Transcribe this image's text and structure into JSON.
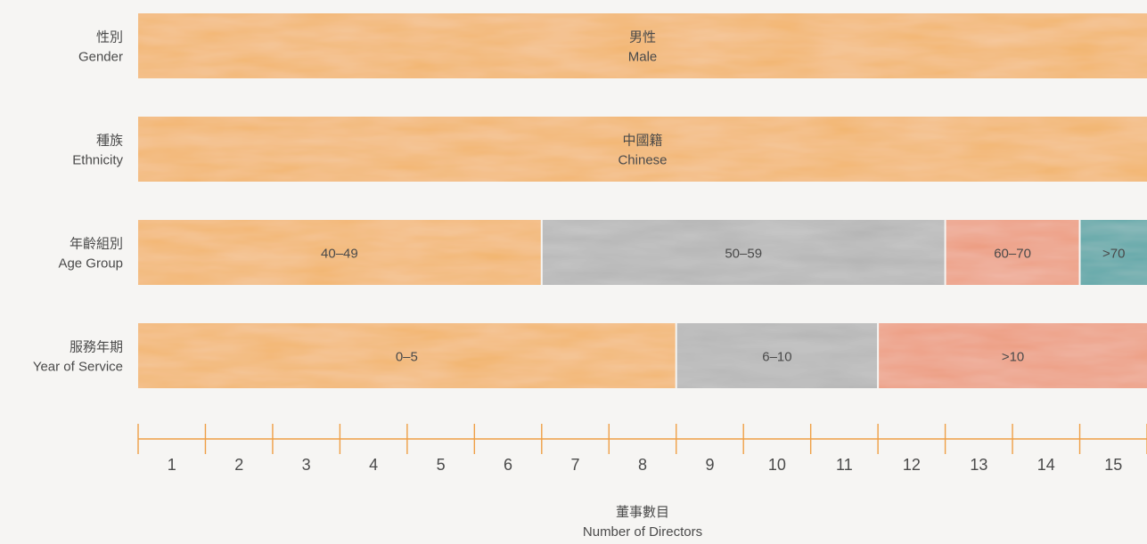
{
  "chart_data": {
    "type": "bar",
    "orientation": "horizontal-stacked",
    "rows": [
      {
        "label_zh": "性別",
        "label_en": "Gender",
        "segments": [
          {
            "label_zh": "男性",
            "label_en": "Male",
            "value": 15,
            "color": "#f2b46c"
          }
        ]
      },
      {
        "label_zh": "種族",
        "label_en": "Ethnicity",
        "segments": [
          {
            "label_zh": "中國籍",
            "label_en": "Chinese",
            "value": 15,
            "color": "#f2b46c"
          }
        ]
      },
      {
        "label_zh": "年齡組別",
        "label_en": "Age Group",
        "segments": [
          {
            "label_zh": "",
            "label_en": "40–49",
            "value": 6,
            "color": "#f2b46c"
          },
          {
            "label_zh": "",
            "label_en": "50–59",
            "value": 6,
            "color": "#b3b3b3"
          },
          {
            "label_zh": "",
            "label_en": "60–70",
            "value": 2,
            "color": "#ec9a7d"
          },
          {
            "label_zh": "",
            "label_en": ">70",
            "value": 1,
            "color": "#4fa2a3"
          }
        ]
      },
      {
        "label_zh": "服務年期",
        "label_en": "Year of Service",
        "segments": [
          {
            "label_zh": "",
            "label_en": "0–5",
            "value": 8,
            "color": "#f2b46c"
          },
          {
            "label_zh": "",
            "label_en": "6–10",
            "value": 3,
            "color": "#b3b3b3"
          },
          {
            "label_zh": "",
            "label_en": ">10",
            "value": 4,
            "color": "#ec9a7d"
          }
        ]
      }
    ],
    "x_ticks": [
      "1",
      "2",
      "3",
      "4",
      "5",
      "6",
      "7",
      "8",
      "9",
      "10",
      "11",
      "12",
      "13",
      "14",
      "15"
    ],
    "xlim": [
      0,
      15
    ],
    "xlabel_zh": "董事數目",
    "xlabel_en": "Number of Directors",
    "axis_color": "#ef9f45",
    "grid": false
  }
}
